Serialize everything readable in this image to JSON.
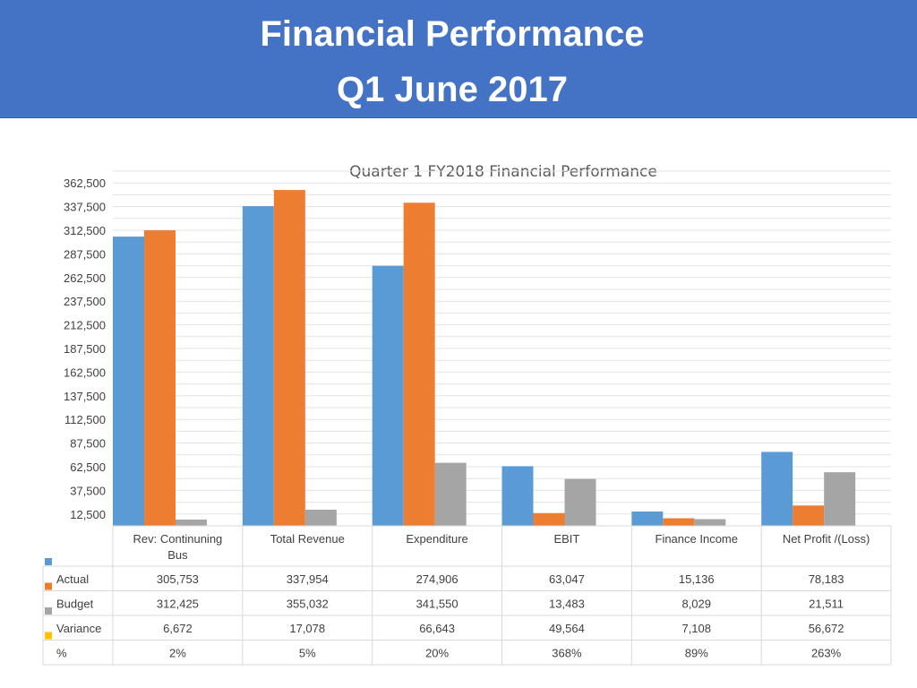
{
  "slide": {
    "title_line1": "Financial Performance",
    "title_line2": "Q1 June 2017",
    "banner_color": "#4472c4"
  },
  "chart_data": {
    "type": "bar",
    "title": "Quarter 1 FY2018 Financial Performance",
    "categories": [
      "Rev: Continuning Bus",
      "Total Revenue",
      "Expenditure",
      "EBIT",
      "Finance Income",
      "Net Profit /(Loss)"
    ],
    "series": [
      {
        "name": "Actual",
        "color": "#5b9bd5",
        "values": [
          305753,
          337954,
          274906,
          63047,
          15136,
          78183
        ]
      },
      {
        "name": "Budget",
        "color": "#ed7d31",
        "values": [
          312425,
          355032,
          341550,
          13483,
          8029,
          21511
        ]
      },
      {
        "name": "Variance",
        "color": "#a5a5a5",
        "values": [
          6672,
          17078,
          66643,
          49564,
          7108,
          56672
        ]
      }
    ],
    "extra_row": {
      "name": "%",
      "color": "#ffc000",
      "values": [
        "2%",
        "5%",
        "20%",
        "368%",
        "89%",
        "263%"
      ]
    },
    "y_ticks": [
      12500,
      37500,
      62500,
      87500,
      112500,
      137500,
      162500,
      187500,
      212500,
      237500,
      262500,
      287500,
      312500,
      337500,
      362500
    ],
    "ylim": [
      0,
      375000
    ],
    "grid": true,
    "legend": "data-table"
  }
}
